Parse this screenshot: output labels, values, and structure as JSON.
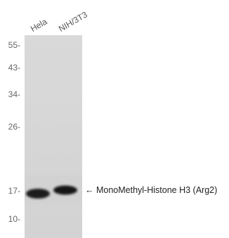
{
  "lanes": [
    "Hela",
    "NIH/3T3"
  ],
  "markers": [
    "55-",
    "43-",
    "34-",
    "26-",
    "17-",
    "10-"
  ],
  "annotation": "← MonoMethyl-Histone H3 (Arg2)",
  "colors": {
    "membrane": "#d6d6d6",
    "band": "#1a1a1a"
  }
}
